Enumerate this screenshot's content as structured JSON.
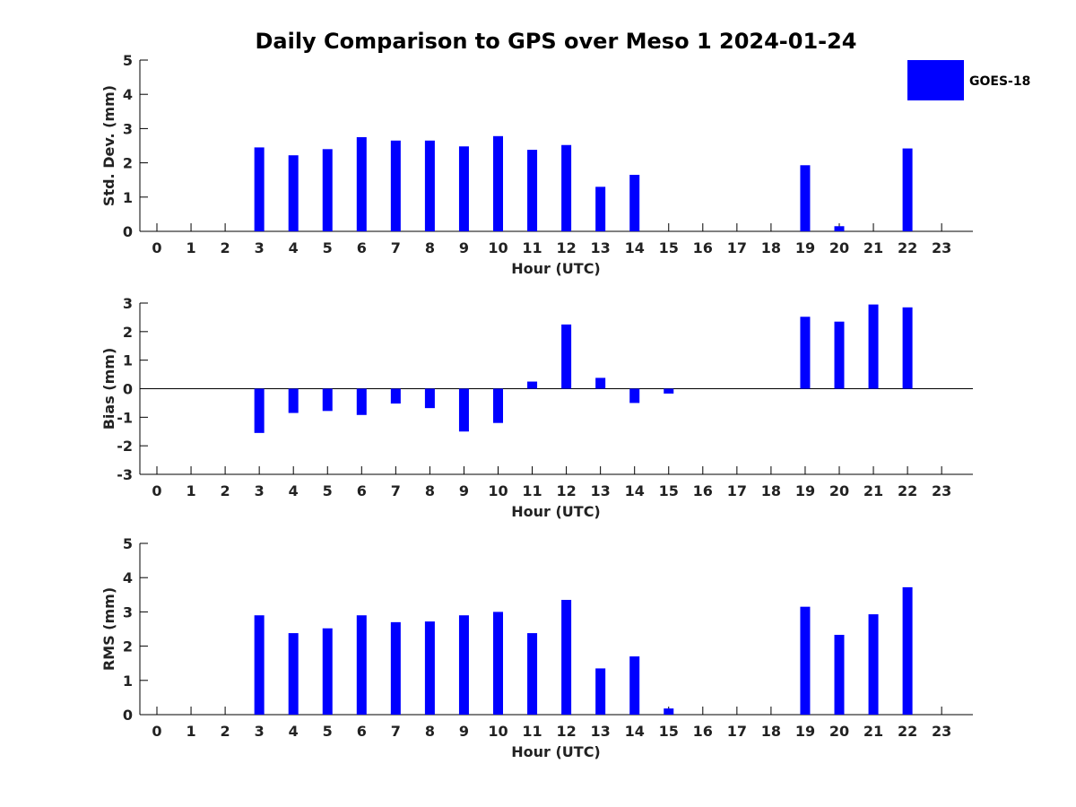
{
  "figure": {
    "title": "Daily Comparison to GPS over Meso 1 2024-01-24",
    "legend": {
      "label": "GOES-18",
      "color": "#0000ff",
      "placement": "top-right"
    }
  },
  "chart_data": [
    {
      "type": "bar",
      "xlabel": "Hour (UTC)",
      "ylabel": "Std. Dev. (mm)",
      "ylim": [
        0,
        5
      ],
      "yticks": [
        0,
        1,
        2,
        3,
        4,
        5
      ],
      "categories": [
        0,
        1,
        2,
        3,
        4,
        5,
        6,
        7,
        8,
        9,
        10,
        11,
        12,
        13,
        14,
        15,
        16,
        17,
        18,
        19,
        20,
        21,
        22,
        23
      ],
      "series": [
        {
          "name": "GOES-18",
          "color": "#0000ff",
          "values": [
            null,
            null,
            null,
            2.45,
            2.22,
            2.4,
            2.75,
            2.65,
            2.65,
            2.48,
            2.78,
            2.38,
            2.52,
            1.3,
            1.65,
            null,
            null,
            null,
            null,
            1.93,
            0.15,
            null,
            2.42,
            null
          ]
        }
      ],
      "grid": false
    },
    {
      "type": "bar",
      "xlabel": "Hour (UTC)",
      "ylabel": "Bias (mm)",
      "ylim": [
        -3,
        3
      ],
      "yticks": [
        -3,
        -2,
        -1,
        0,
        1,
        2,
        3
      ],
      "categories": [
        0,
        1,
        2,
        3,
        4,
        5,
        6,
        7,
        8,
        9,
        10,
        11,
        12,
        13,
        14,
        15,
        16,
        17,
        18,
        19,
        20,
        21,
        22,
        23
      ],
      "series": [
        {
          "name": "GOES-18",
          "color": "#0000ff",
          "values": [
            null,
            null,
            null,
            -1.55,
            -0.85,
            -0.78,
            -0.92,
            -0.52,
            -0.68,
            -1.5,
            -1.2,
            0.25,
            2.25,
            0.38,
            -0.5,
            -0.17,
            null,
            null,
            null,
            2.52,
            2.35,
            2.95,
            2.85,
            null
          ]
        }
      ],
      "grid": false
    },
    {
      "type": "bar",
      "xlabel": "Hour (UTC)",
      "ylabel": "RMS (mm)",
      "ylim": [
        0,
        5
      ],
      "yticks": [
        0,
        1,
        2,
        3,
        4,
        5
      ],
      "categories": [
        0,
        1,
        2,
        3,
        4,
        5,
        6,
        7,
        8,
        9,
        10,
        11,
        12,
        13,
        14,
        15,
        16,
        17,
        18,
        19,
        20,
        21,
        22,
        23
      ],
      "series": [
        {
          "name": "GOES-18",
          "color": "#0000ff",
          "values": [
            null,
            null,
            null,
            2.9,
            2.38,
            2.52,
            2.9,
            2.7,
            2.72,
            2.9,
            3.0,
            2.38,
            3.35,
            1.35,
            1.7,
            0.18,
            null,
            null,
            null,
            3.15,
            2.33,
            2.93,
            3.72,
            null
          ]
        }
      ],
      "grid": false
    }
  ]
}
